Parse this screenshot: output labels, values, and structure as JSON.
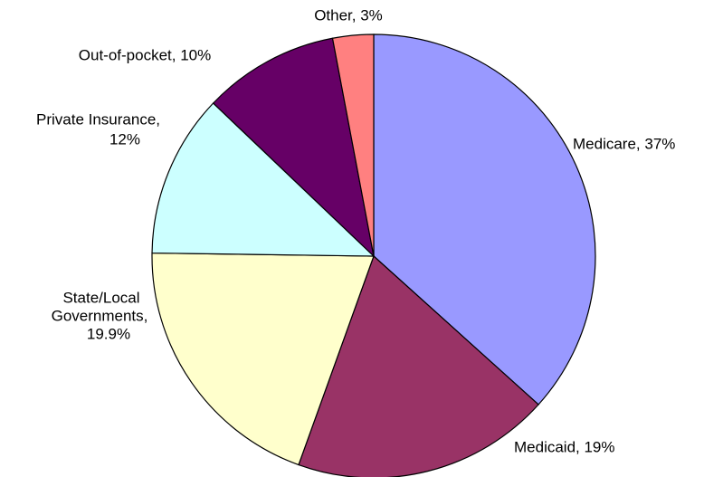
{
  "chart_data": {
    "type": "pie",
    "values": [
      37,
      19,
      19.9,
      12,
      10,
      3
    ],
    "labels": [
      [
        "Medicare, 37%"
      ],
      [
        "Medicaid, 19%"
      ],
      [
        "State/Local",
        "Governments,",
        "19.9%"
      ],
      [
        "Private Insurance,",
        "12%"
      ],
      [
        "Out-of-pocket, 10%"
      ],
      [
        "Other, 3%"
      ]
    ],
    "colors": [
      "#9999ff",
      "#993366",
      "#ffffcc",
      "#ccffff",
      "#660066",
      "#ff8080"
    ]
  }
}
